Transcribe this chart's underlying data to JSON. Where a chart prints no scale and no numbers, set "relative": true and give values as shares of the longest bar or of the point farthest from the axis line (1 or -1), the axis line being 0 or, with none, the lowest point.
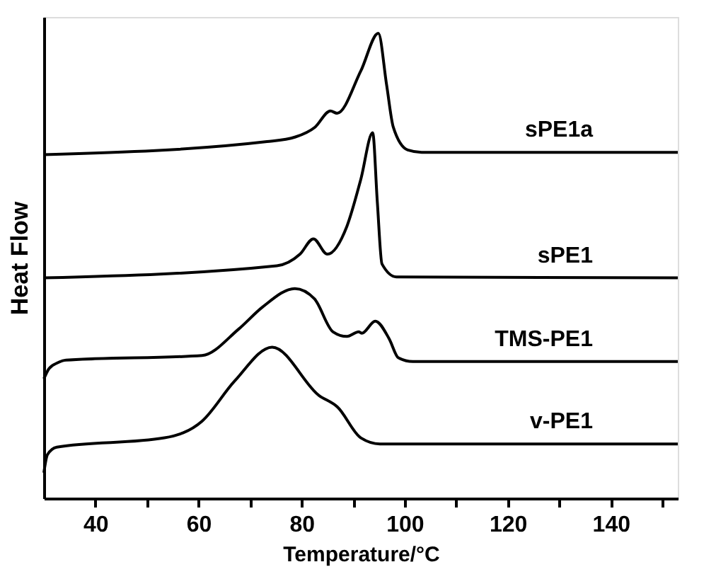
{
  "chart_data": {
    "type": "line",
    "relative": true,
    "xlabel": "Temperature/°C",
    "ylabel": "Heat Flow",
    "xlim": [
      30,
      153
    ],
    "xticks": [
      40,
      {
        "value": 50,
        "label": null
      },
      60,
      {
        "value": 70,
        "label": null
      },
      80,
      {
        "value": 90,
        "label": null
      },
      100,
      {
        "value": 110,
        "label": null
      },
      120,
      {
        "value": 130,
        "label": null
      },
      140,
      {
        "value": 150,
        "label": null
      }
    ],
    "grid": false,
    "legend": false,
    "marker": "none",
    "line_style": "solid",
    "series": [
      {
        "name": "sPE1a",
        "color": "#000000",
        "x": [
          30,
          73.3,
          78.8,
          82.6,
          85.6,
          86.9,
          91.5,
          94.9,
          96.5,
          97.8,
          100.6,
          103.3,
          153
        ],
        "values": [
          0.739,
          0.767,
          0.777,
          0.798,
          0.833,
          0.828,
          0.919,
          1.0,
          0.889,
          0.798,
          0.749,
          0.744,
          0.744
        ]
      },
      {
        "name": "sPE1",
        "color": "#000000",
        "x": [
          30,
          75.2,
          79.7,
          82.3,
          85.0,
          88.8,
          91.5,
          93.8,
          94.7,
          95.6,
          98.4,
          153
        ],
        "values": [
          0.474,
          0.5,
          0.525,
          0.558,
          0.525,
          0.585,
          0.686,
          0.786,
          0.637,
          0.504,
          0.476,
          0.474
        ]
      },
      {
        "name": "TMS-PE1",
        "color": "#000000",
        "x": [
          30,
          31,
          32.6,
          34.3,
          60.7,
          67.8,
          72.5,
          78.7,
          82.5,
          86.1,
          88.8,
          91.1,
          91.7,
          94.3,
          97.0,
          98.8,
          101.6,
          153
        ],
        "values": [
          0.257,
          0.279,
          0.291,
          0.297,
          0.307,
          0.364,
          0.412,
          0.451,
          0.429,
          0.358,
          0.348,
          0.358,
          0.355,
          0.381,
          0.343,
          0.302,
          0.294,
          0.294
        ]
      },
      {
        "name": "v-PE1",
        "color": "#000000",
        "x": [
          30,
          30.7,
          32.5,
          53.4,
          60.7,
          67.0,
          74.3,
          83.4,
          87.0,
          91.5,
          95.2,
          153
        ],
        "values": [
          0.055,
          0.094,
          0.11,
          0.13,
          0.166,
          0.252,
          0.325,
          0.221,
          0.196,
          0.13,
          0.117,
          0.117
        ]
      }
    ]
  }
}
